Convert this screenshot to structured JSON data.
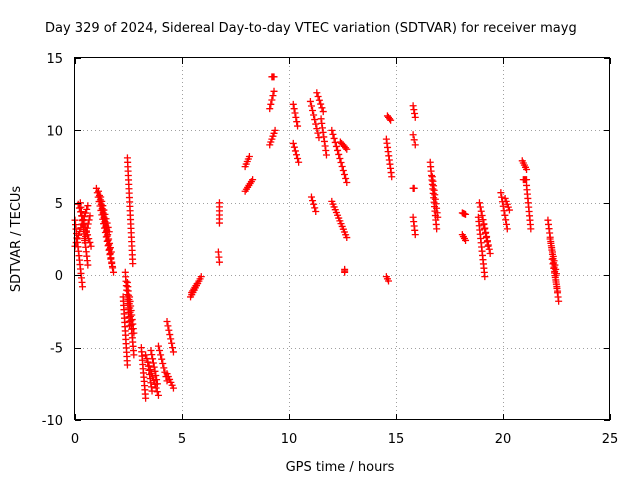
{
  "chart_data": {
    "type": "scatter",
    "title": "Day 329 of 2024, Sidereal Day-to-day VTEC variation (SDTVAR) for receiver mayg",
    "xlabel": "GPS time / hours",
    "ylabel": "SDTVAR / TECUs",
    "xlim": [
      0,
      25
    ],
    "ylim": [
      -10,
      15
    ],
    "xticks": [
      0,
      5,
      10,
      15,
      20,
      25
    ],
    "yticks": [
      -10,
      -5,
      0,
      5,
      10,
      15
    ],
    "xtick_labels": [
      "0",
      "5",
      "10",
      "15",
      "20",
      "25"
    ],
    "ytick_labels": [
      "-10",
      "-5",
      "0",
      "5",
      "10",
      "15"
    ],
    "grid": true,
    "marker": "+",
    "series_color": "#ff0000",
    "series": [
      {
        "name": "SDTVAR",
        "segments": [
          {
            "x": [
              0.0,
              0.35
            ],
            "y": [
              3.8,
              -0.8
            ]
          },
          {
            "x": [
              0.0,
              0.6
            ],
            "y": [
              2.0,
              4.8
            ]
          },
          {
            "x": [
              0.15,
              0.75
            ],
            "y": [
              4.9,
              2.0
            ]
          },
          {
            "x": [
              0.25,
              0.6
            ],
            "y": [
              5.0,
              0.7
            ]
          },
          {
            "x": [
              0.45,
              0.7
            ],
            "y": [
              2.4,
              4.1
            ]
          },
          {
            "x": [
              1.0,
              1.8
            ],
            "y": [
              6.0,
              0.2
            ]
          },
          {
            "x": [
              1.1,
              1.7
            ],
            "y": [
              5.8,
              1.6
            ]
          },
          {
            "x": [
              1.2,
              1.6
            ],
            "y": [
              5.4,
              3.0
            ]
          },
          {
            "x": [
              1.3,
              1.75
            ],
            "y": [
              4.5,
              0.6
            ]
          },
          {
            "x": [
              2.25,
              2.45
            ],
            "y": [
              -1.5,
              -6.2
            ]
          },
          {
            "x": [
              2.35,
              2.55
            ],
            "y": [
              0.2,
              -3.5
            ]
          },
          {
            "x": [
              2.45,
              2.75
            ],
            "y": [
              -0.5,
              -5.5
            ]
          },
          {
            "x": [
              2.55,
              2.75
            ],
            "y": [
              -1.5,
              -4.0
            ]
          },
          {
            "x": [
              2.45,
              2.7
            ],
            "y": [
              8.1,
              0.8
            ]
          },
          {
            "x": [
              3.1,
              3.3
            ],
            "y": [
              -5.0,
              -8.5
            ]
          },
          {
            "x": [
              3.3,
              3.9
            ],
            "y": [
              -5.5,
              -8.3
            ]
          },
          {
            "x": [
              3.4,
              3.6
            ],
            "y": [
              -6.0,
              -8.0
            ]
          },
          {
            "x": [
              3.55,
              3.85
            ],
            "y": [
              -5.2,
              -7.5
            ]
          },
          {
            "x": [
              3.9,
              4.3
            ],
            "y": [
              -4.9,
              -7.3
            ]
          },
          {
            "x": [
              4.3,
              4.6
            ],
            "y": [
              -3.2,
              -5.3
            ]
          },
          {
            "x": [
              4.3,
              4.6
            ],
            "y": [
              -6.8,
              -7.8
            ]
          },
          {
            "x": [
              5.4,
              5.9
            ],
            "y": [
              -1.5,
              -0.1
            ]
          },
          {
            "x": [
              5.45,
              5.7
            ],
            "y": [
              -1.2,
              -0.6
            ]
          },
          {
            "x": [
              6.75,
              6.75
            ],
            "y": [
              5.0,
              3.6
            ]
          },
          {
            "x": [
              6.7,
              6.75
            ],
            "y": [
              1.6,
              0.9
            ]
          },
          {
            "x": [
              7.95,
              8.15
            ],
            "y": [
              7.5,
              8.2
            ]
          },
          {
            "x": [
              7.95,
              8.3
            ],
            "y": [
              5.8,
              6.6
            ]
          },
          {
            "x": [
              9.1,
              9.3
            ],
            "y": [
              11.5,
              12.7
            ]
          },
          {
            "x": [
              9.2,
              9.3
            ],
            "y": [
              13.7,
              13.7
            ]
          },
          {
            "x": [
              9.1,
              9.35
            ],
            "y": [
              9.0,
              10.0
            ]
          },
          {
            "x": [
              10.2,
              10.4
            ],
            "y": [
              11.8,
              10.3
            ]
          },
          {
            "x": [
              10.2,
              10.45
            ],
            "y": [
              9.1,
              7.8
            ]
          },
          {
            "x": [
              11.0,
              11.4
            ],
            "y": [
              12.0,
              9.5
            ]
          },
          {
            "x": [
              11.3,
              11.6
            ],
            "y": [
              12.6,
              11.3
            ]
          },
          {
            "x": [
              11.5,
              11.75
            ],
            "y": [
              10.8,
              8.3
            ]
          },
          {
            "x": [
              11.05,
              11.25
            ],
            "y": [
              5.4,
              4.4
            ]
          },
          {
            "x": [
              12.0,
              12.7
            ],
            "y": [
              10.0,
              6.4
            ]
          },
          {
            "x": [
              12.4,
              12.7
            ],
            "y": [
              9.2,
              8.7
            ]
          },
          {
            "x": [
              12.0,
              12.7
            ],
            "y": [
              5.1,
              2.6
            ]
          },
          {
            "x": [
              12.6,
              12.6
            ],
            "y": [
              0.4,
              0.2
            ]
          },
          {
            "x": [
              14.55,
              14.65
            ],
            "y": [
              -0.1,
              -0.4
            ]
          },
          {
            "x": [
              14.6,
              14.75
            ],
            "y": [
              11.0,
              10.7
            ]
          },
          {
            "x": [
              14.55,
              14.8
            ],
            "y": [
              9.4,
              6.8
            ]
          },
          {
            "x": [
              15.8,
              15.9
            ],
            "y": [
              11.7,
              10.9
            ]
          },
          {
            "x": [
              15.8,
              15.9
            ],
            "y": [
              9.7,
              9.0
            ]
          },
          {
            "x": [
              15.8,
              15.85
            ],
            "y": [
              6.0,
              6.0
            ]
          },
          {
            "x": [
              15.8,
              15.9
            ],
            "y": [
              4.0,
              2.8
            ]
          },
          {
            "x": [
              16.6,
              16.9
            ],
            "y": [
              7.8,
              3.2
            ]
          },
          {
            "x": [
              16.7,
              16.95
            ],
            "y": [
              6.8,
              4.0
            ]
          },
          {
            "x": [
              18.1,
              18.25
            ],
            "y": [
              4.3,
              4.2
            ]
          },
          {
            "x": [
              18.1,
              18.25
            ],
            "y": [
              2.8,
              2.4
            ]
          },
          {
            "x": [
              18.85,
              19.15
            ],
            "y": [
              4.0,
              -0.1
            ]
          },
          {
            "x": [
              18.9,
              19.4
            ],
            "y": [
              5.0,
              1.5
            ]
          },
          {
            "x": [
              19.1,
              19.3
            ],
            "y": [
              3.5,
              2.0
            ]
          },
          {
            "x": [
              19.9,
              20.2
            ],
            "y": [
              5.7,
              3.2
            ]
          },
          {
            "x": [
              20.1,
              20.3
            ],
            "y": [
              5.3,
              4.5
            ]
          },
          {
            "x": [
              20.9,
              21.1
            ],
            "y": [
              7.9,
              7.3
            ]
          },
          {
            "x": [
              20.95,
              21.1
            ],
            "y": [
              6.6,
              6.6
            ]
          },
          {
            "x": [
              21.1,
              21.3
            ],
            "y": [
              6.2,
              3.2
            ]
          },
          {
            "x": [
              22.1,
              22.6
            ],
            "y": [
              3.8,
              -1.8
            ]
          },
          {
            "x": [
              22.2,
              22.5
            ],
            "y": [
              2.5,
              0.1
            ]
          },
          {
            "x": [
              22.3,
              22.55
            ],
            "y": [
              1.1,
              -1.1
            ]
          }
        ]
      }
    ]
  }
}
